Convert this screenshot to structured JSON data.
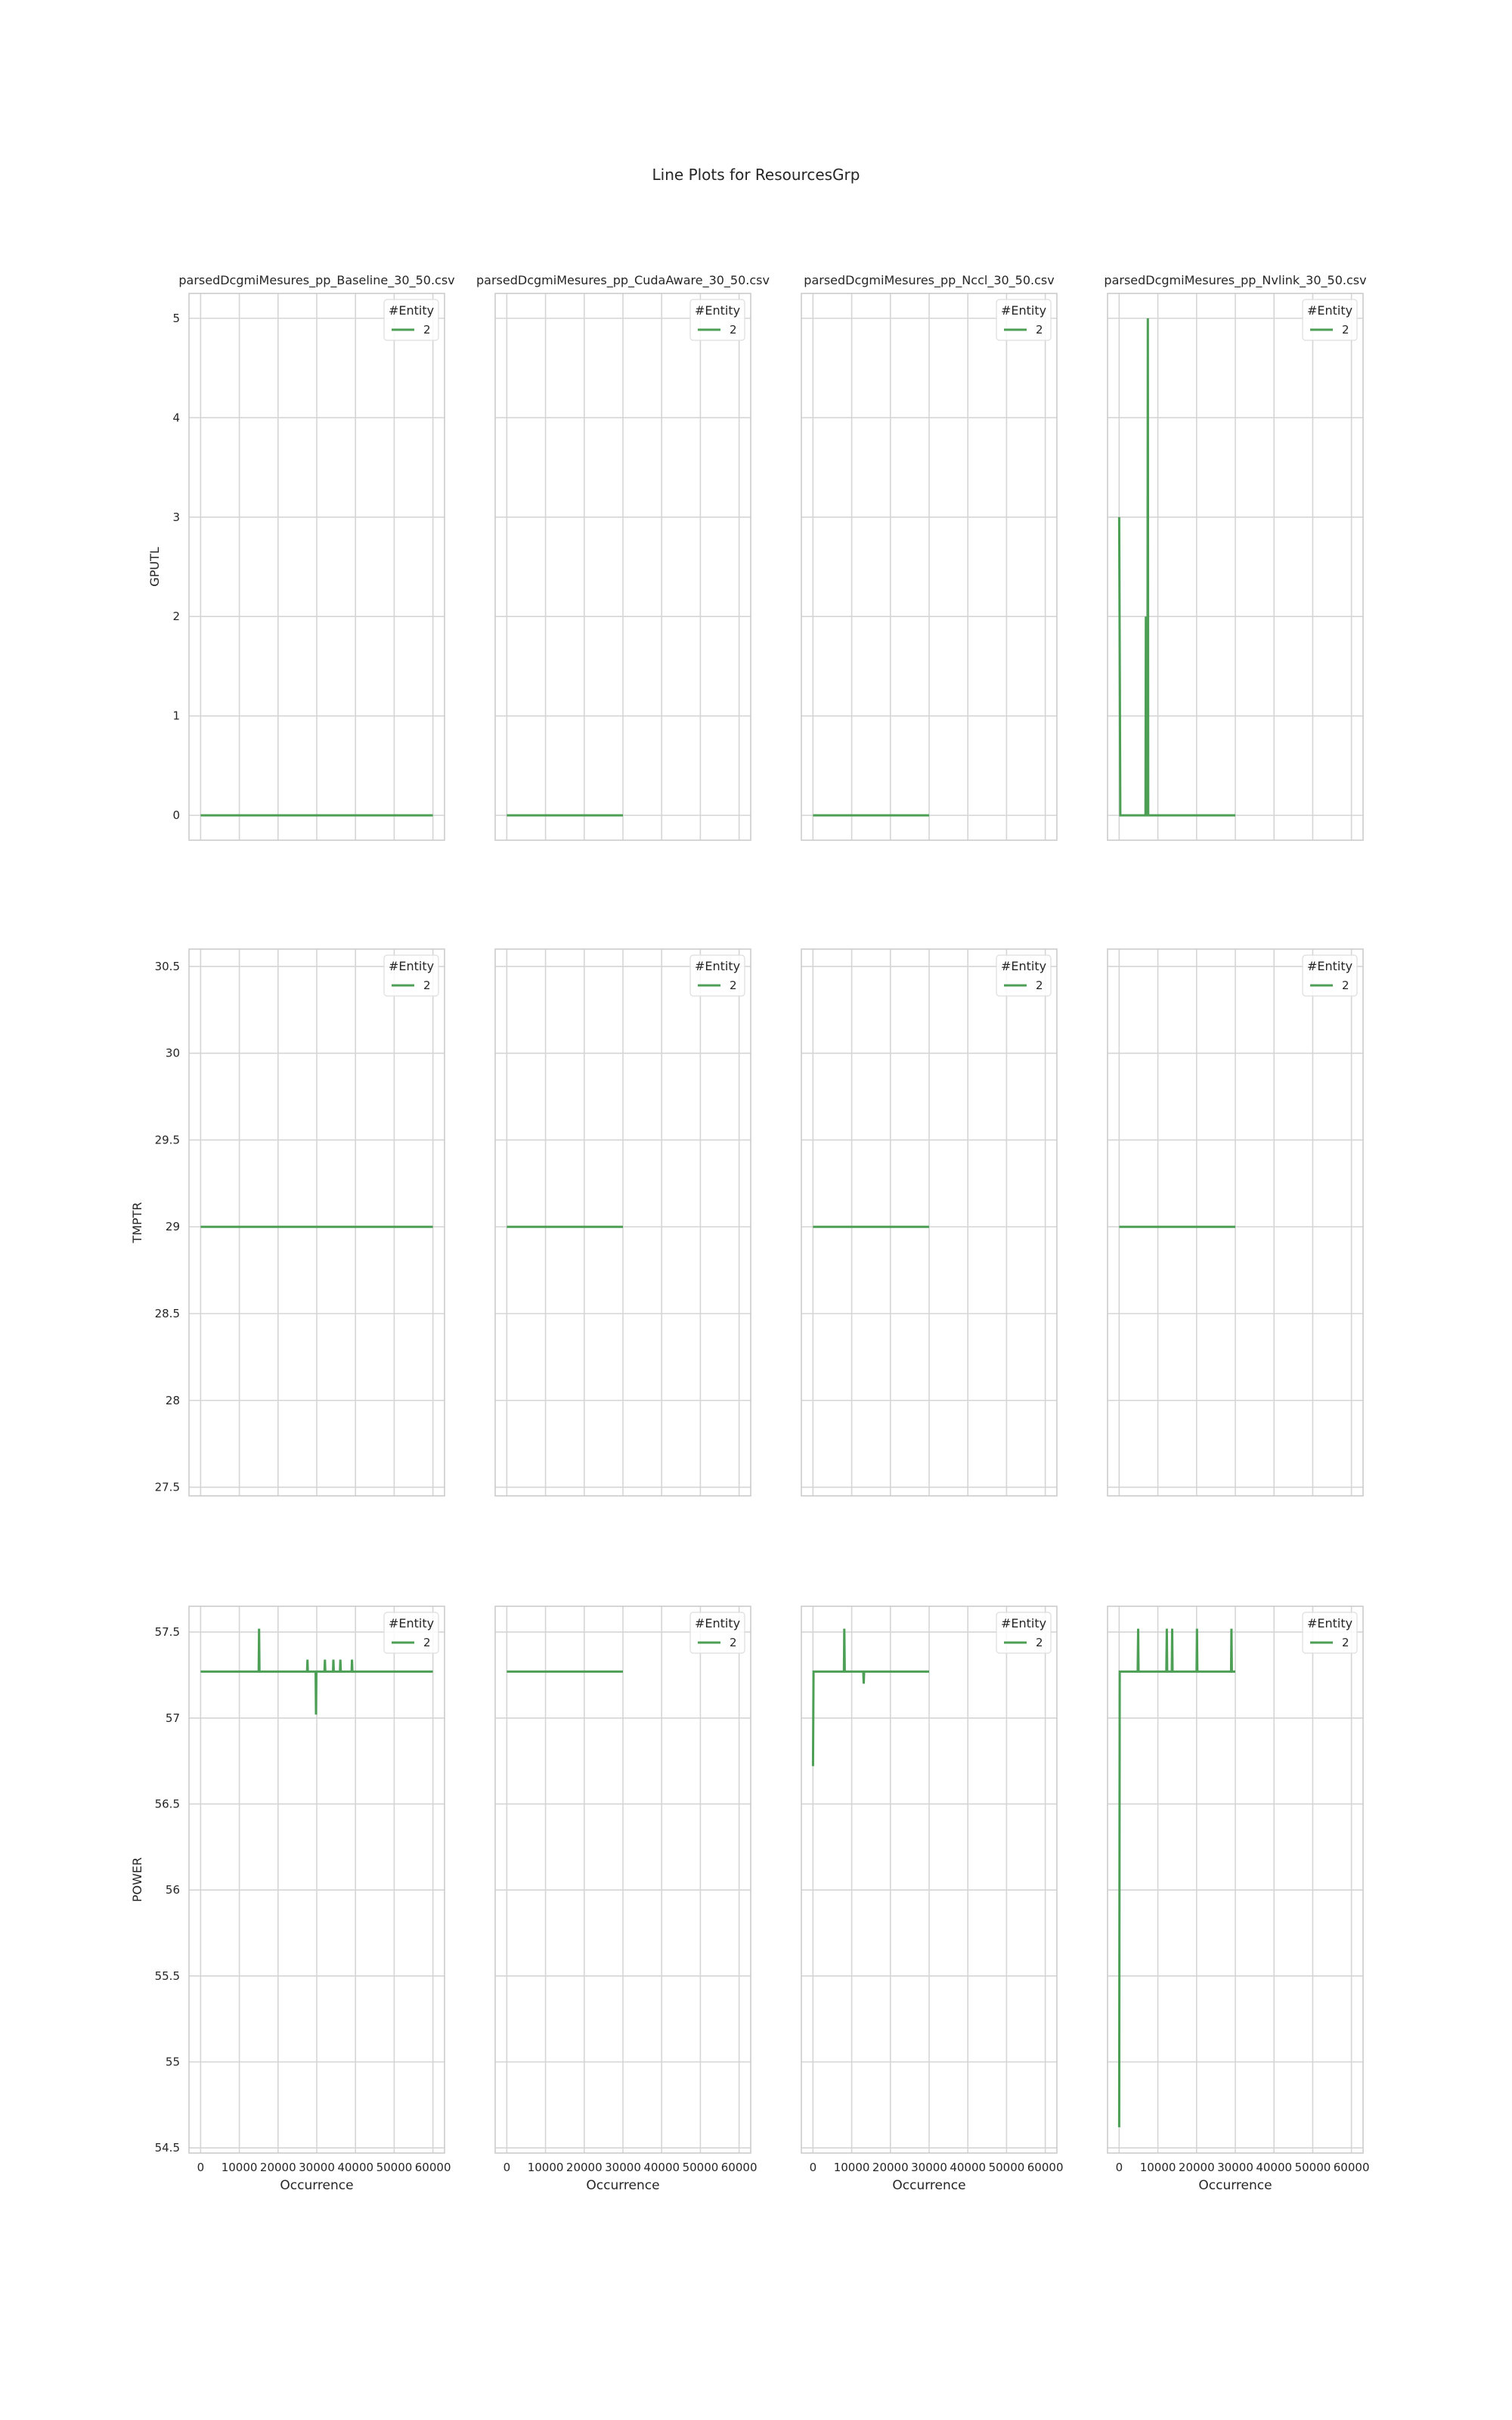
{
  "figure": {
    "title": "Line Plots for ResourcesGrp"
  },
  "legend": {
    "title": "#Entity",
    "entries": [
      "2"
    ]
  },
  "colors": {
    "line": "#4c9f55",
    "grid": "#d5d5d5",
    "axis": "#cccccc",
    "text": "#262626"
  },
  "chart_data": {
    "type": "line",
    "columns": [
      "parsedDcgmiMesures_pp_Baseline_30_50.csv",
      "parsedDcgmiMesures_pp_CudaAware_30_50.csv",
      "parsedDcgmiMesures_pp_Nccl_30_50.csv",
      "parsedDcgmiMesures_pp_Nvlink_30_50.csv"
    ],
    "xlabel": "Occurrence",
    "xlim": [
      -3000,
      63000
    ],
    "xticks": [
      0,
      10000,
      20000,
      30000,
      40000,
      50000,
      60000
    ],
    "grid": true,
    "legend_position": "top-right",
    "rows": [
      {
        "ylabel": "GPUTL",
        "ylim": [
          -0.25,
          5.25
        ],
        "yticks": [
          0,
          1,
          2,
          3,
          4,
          5
        ],
        "series": [
          {
            "name": "2",
            "points": [
              [
                0,
                0
              ],
              [
                60000,
                0
              ]
            ]
          },
          {
            "name": "2",
            "points": [
              [
                0,
                0
              ],
              [
                30000,
                0
              ]
            ]
          },
          {
            "name": "2",
            "points": [
              [
                0,
                0
              ],
              [
                30000,
                0
              ]
            ]
          },
          {
            "name": "2",
            "points": [
              [
                0,
                3
              ],
              [
                300,
                0
              ],
              [
                6800,
                0
              ],
              [
                6900,
                2
              ],
              [
                7000,
                0
              ],
              [
                7300,
                0
              ],
              [
                7400,
                5
              ],
              [
                7500,
                0
              ],
              [
                30000,
                0
              ]
            ]
          }
        ]
      },
      {
        "ylabel": "TMPTR",
        "ylim": [
          27.45,
          30.6
        ],
        "yticks": [
          27.5,
          28.0,
          28.5,
          29.0,
          29.5,
          30.0,
          30.5
        ],
        "series": [
          {
            "name": "2",
            "points": [
              [
                0,
                29
              ],
              [
                60000,
                29
              ]
            ]
          },
          {
            "name": "2",
            "points": [
              [
                0,
                29
              ],
              [
                30000,
                29
              ]
            ]
          },
          {
            "name": "2",
            "points": [
              [
                0,
                29
              ],
              [
                30000,
                29
              ]
            ]
          },
          {
            "name": "2",
            "points": [
              [
                0,
                29
              ],
              [
                30000,
                29
              ]
            ]
          }
        ]
      },
      {
        "ylabel": "POWER",
        "ylim": [
          54.47,
          57.65
        ],
        "yticks": [
          54.5,
          55.0,
          55.5,
          56.0,
          56.5,
          57.0,
          57.5
        ],
        "series": [
          {
            "name": "2",
            "points": [
              [
                0,
                57.27
              ],
              [
                15000,
                57.27
              ],
              [
                15100,
                57.52
              ],
              [
                15200,
                57.27
              ],
              [
                27500,
                57.27
              ],
              [
                27600,
                57.34
              ],
              [
                27700,
                57.27
              ],
              [
                29700,
                57.27
              ],
              [
                29800,
                57.02
              ],
              [
                29900,
                57.27
              ],
              [
                32000,
                57.27
              ],
              [
                32100,
                57.34
              ],
              [
                32200,
                57.27
              ],
              [
                34200,
                57.27
              ],
              [
                34300,
                57.34
              ],
              [
                34400,
                57.27
              ],
              [
                36000,
                57.27
              ],
              [
                36100,
                57.34
              ],
              [
                36200,
                57.27
              ],
              [
                39000,
                57.27
              ],
              [
                39100,
                57.34
              ],
              [
                39200,
                57.27
              ],
              [
                60000,
                57.27
              ]
            ]
          },
          {
            "name": "2",
            "points": [
              [
                0,
                57.27
              ],
              [
                30000,
                57.27
              ]
            ]
          },
          {
            "name": "2",
            "points": [
              [
                0,
                56.72
              ],
              [
                150,
                57.27
              ],
              [
                8000,
                57.27
              ],
              [
                8100,
                57.52
              ],
              [
                8200,
                57.27
              ],
              [
                13000,
                57.27
              ],
              [
                13100,
                57.2
              ],
              [
                13200,
                57.27
              ],
              [
                30000,
                57.27
              ]
            ]
          },
          {
            "name": "2",
            "points": [
              [
                0,
                54.62
              ],
              [
                150,
                57.27
              ],
              [
                4800,
                57.27
              ],
              [
                4900,
                57.52
              ],
              [
                5000,
                57.27
              ],
              [
                12200,
                57.27
              ],
              [
                12300,
                57.52
              ],
              [
                12400,
                57.27
              ],
              [
                13600,
                57.27
              ],
              [
                13700,
                57.52
              ],
              [
                13800,
                57.27
              ],
              [
                20000,
                57.27
              ],
              [
                20100,
                57.52
              ],
              [
                20200,
                57.27
              ],
              [
                28900,
                57.27
              ],
              [
                29000,
                57.52
              ],
              [
                29100,
                57.27
              ],
              [
                30000,
                57.27
              ]
            ]
          }
        ]
      }
    ]
  }
}
